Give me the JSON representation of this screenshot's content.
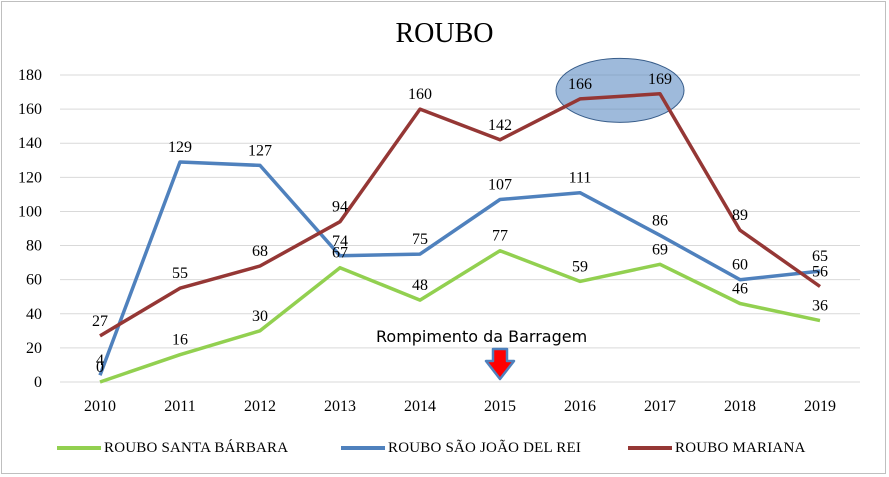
{
  "chart_data": {
    "type": "line",
    "title": "ROUBO",
    "categories": [
      "2010",
      "2011",
      "2012",
      "2013",
      "2014",
      "2015",
      "2016",
      "2017",
      "2018",
      "2019"
    ],
    "ylim": [
      0,
      180
    ],
    "yticks": [
      0,
      20,
      40,
      60,
      80,
      100,
      120,
      140,
      160,
      180
    ],
    "grid": true,
    "legend_position": "bottom",
    "series": [
      {
        "name": "ROUBO SANTA BÁRBARA",
        "color": "#92d050",
        "values": [
          0,
          16,
          30,
          67,
          48,
          77,
          59,
          69,
          46,
          36
        ]
      },
      {
        "name": "ROUBO SÃO JOÃO DEL REI",
        "color": "#4f81bd",
        "values": [
          4,
          129,
          127,
          74,
          75,
          107,
          111,
          86,
          60,
          65
        ]
      },
      {
        "name": "ROUBO MARIANA",
        "color": "#953735",
        "values": [
          27,
          55,
          68,
          94,
          160,
          142,
          166,
          169,
          89,
          56
        ]
      }
    ],
    "annotations": [
      {
        "text": "Rompimento da Barragem",
        "at": "2015",
        "marker": "arrow-down-icon",
        "color": "#ff0000",
        "outline": "#4f81bd"
      },
      {
        "highlight": "ellipse",
        "series": "ROUBO MARIANA",
        "range": [
          "2016",
          "2017"
        ],
        "color": "#4f81bd"
      }
    ]
  }
}
